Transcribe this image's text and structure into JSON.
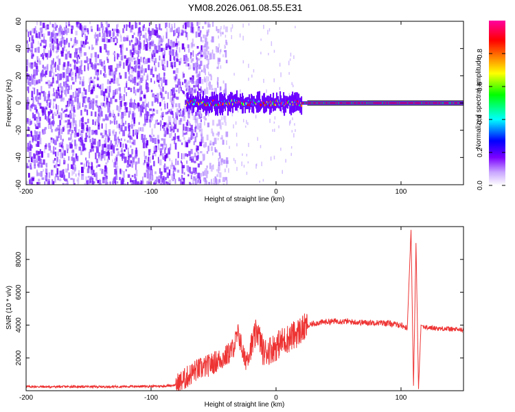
{
  "figure": {
    "title": "YM08.2026.061.08.55.E31"
  },
  "chart_data": [
    {
      "type": "heatmap",
      "title": "",
      "xlabel": "Height of straight line (km)",
      "ylabel": "Frequency (Hz)",
      "xlim": [
        -200,
        150
      ],
      "ylim": [
        -60,
        60
      ],
      "xticks": [
        -200,
        -100,
        0,
        100
      ],
      "yticks": [
        -60,
        -40,
        -20,
        0,
        20,
        40,
        60
      ],
      "colorbar": {
        "label": "Normalized spectral amplitude",
        "range": [
          0.0,
          1.0
        ],
        "ticks": [
          0.0,
          0.2,
          0.4,
          0.6,
          0.8
        ],
        "tick_labels": [
          "0.0",
          "0.2",
          "0.4",
          "0.6",
          "0.8"
        ],
        "colors": [
          "#ffffff",
          "#7b00ff",
          "#0000ff",
          "#00ffff",
          "#00ff00",
          "#ffff00",
          "#ff7f00",
          "#ff0000",
          "#ff00ff"
        ]
      },
      "regions": [
        {
          "x": [
            -200,
            -55
          ],
          "y": [
            -60,
            60
          ],
          "description_value": 0.15,
          "pattern": "noise"
        },
        {
          "x": [
            -55,
            -20
          ],
          "y": [
            -60,
            60
          ],
          "description_value": 0.08,
          "pattern": "sparse-noise"
        },
        {
          "x": [
            -70,
            150
          ],
          "y": [
            -2,
            2
          ],
          "description_value": 0.9,
          "pattern": "signal-band"
        }
      ],
      "grid": false
    },
    {
      "type": "line",
      "title": "",
      "xlabel": "Height of straight line (km)",
      "ylabel": "SNR (10 * v/v)",
      "xlim": [
        -200,
        150
      ],
      "ylim": [
        0,
        10000
      ],
      "xticks": [
        -200,
        -100,
        0,
        100
      ],
      "yticks": [
        2000,
        4000,
        6000,
        8000
      ],
      "color": "#ee3333",
      "series": [
        {
          "x": [
            -200,
            -180,
            -160,
            -140,
            -120,
            -100,
            -90,
            -80,
            -75,
            -70,
            -65,
            -60,
            -55,
            -50,
            -45,
            -40,
            -35,
            -30,
            -25,
            -20,
            -15,
            -10,
            -5,
            0,
            5,
            10,
            15,
            20,
            25,
            30,
            40,
            50,
            60,
            70,
            80,
            90,
            100,
            105,
            108,
            110,
            112,
            114,
            116,
            120,
            130,
            140,
            150
          ],
          "values": [
            250,
            240,
            250,
            240,
            260,
            270,
            280,
            350,
            600,
            900,
            1200,
            1350,
            1500,
            1700,
            1900,
            2100,
            2500,
            3500,
            1800,
            2600,
            3700,
            2300,
            2500,
            2700,
            3000,
            3200,
            3400,
            3700,
            3900,
            4100,
            4200,
            4250,
            4200,
            4150,
            4150,
            4100,
            4000,
            3800,
            9800,
            300,
            9000,
            100,
            4000,
            3850,
            3800,
            3750,
            3700
          ]
        }
      ],
      "grid": false
    }
  ]
}
